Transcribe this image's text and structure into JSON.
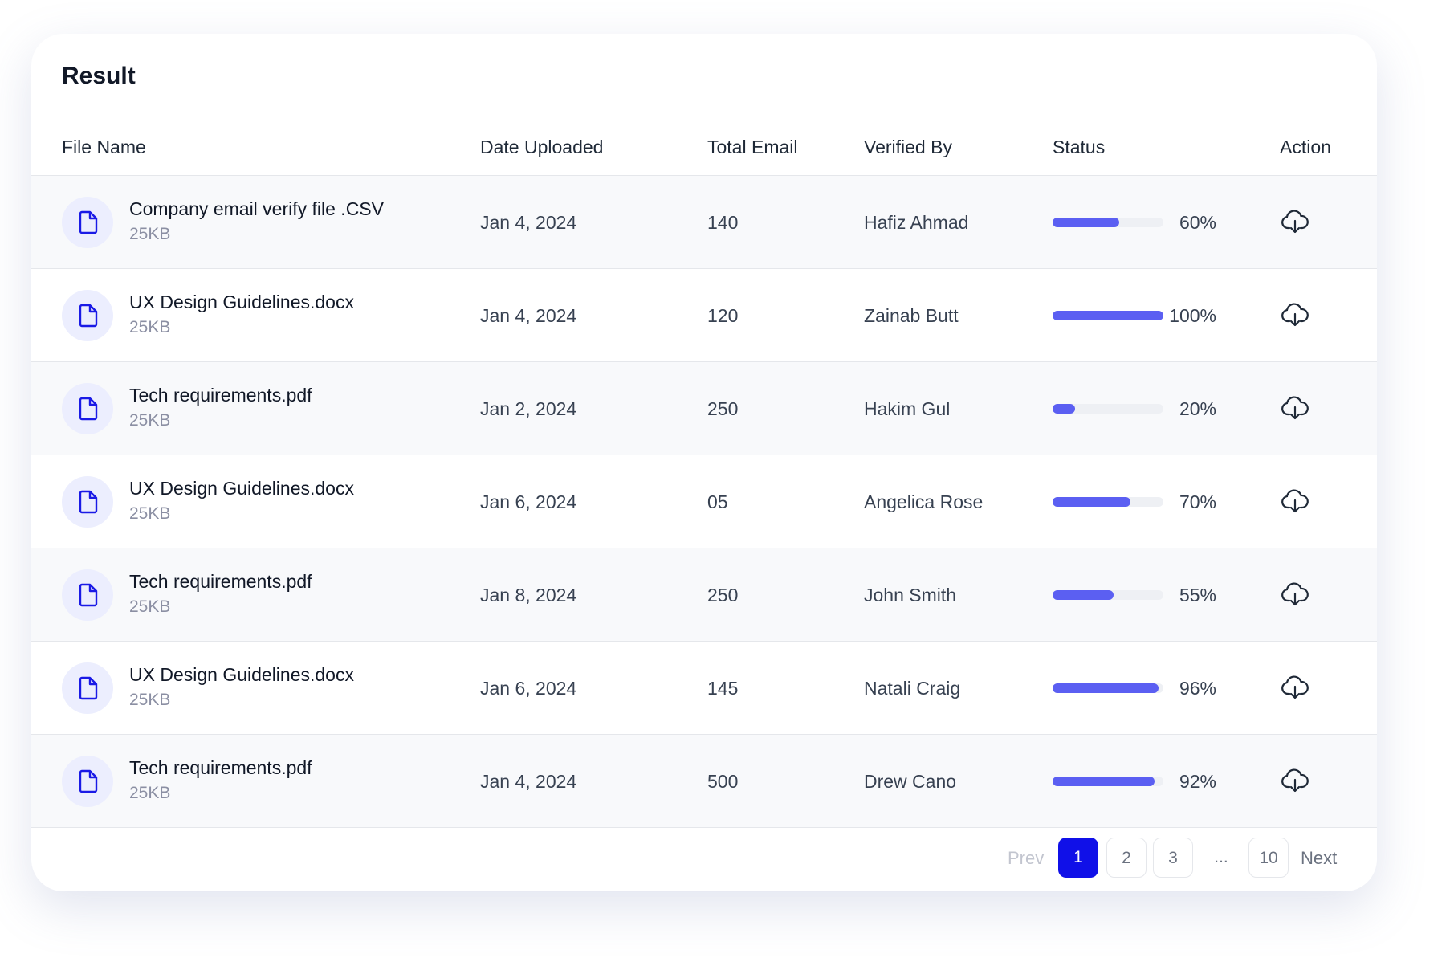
{
  "title": "Result",
  "table": {
    "columns": [
      "File Name",
      "Date Uploaded",
      "Total Email",
      "Verified By",
      "Status",
      "Action"
    ],
    "rows": [
      {
        "file_name": "Company email verify file .CSV",
        "size": "25KB",
        "date": "Jan 4, 2024",
        "total_email": "140",
        "verified_by": "Hafiz Ahmad",
        "status": {
          "value": 60,
          "label": "60%"
        }
      },
      {
        "file_name": "UX Design Guidelines.docx",
        "size": "25KB",
        "date": "Jan 4, 2024",
        "total_email": "120",
        "verified_by": "Zainab Butt",
        "status": {
          "value": 100,
          "label": "100%"
        }
      },
      {
        "file_name": "Tech requirements.pdf",
        "size": "25KB",
        "date": "Jan 2, 2024",
        "total_email": "250",
        "verified_by": "Hakim Gul",
        "status": {
          "value": 20,
          "label": "20%"
        }
      },
      {
        "file_name": "UX Design Guidelines.docx",
        "size": "25KB",
        "date": "Jan 6, 2024",
        "total_email": "05",
        "verified_by": "Angelica Rose",
        "status": {
          "value": 70,
          "label": "70%"
        }
      },
      {
        "file_name": "Tech requirements.pdf",
        "size": "25KB",
        "date": "Jan 8, 2024",
        "total_email": "250",
        "verified_by": "John Smith",
        "status": {
          "value": 55,
          "label": "55%"
        }
      },
      {
        "file_name": "UX Design Guidelines.docx",
        "size": "25KB",
        "date": "Jan 6, 2024",
        "total_email": "145",
        "verified_by": "Natali Craig",
        "status": {
          "value": 96,
          "label": "96%"
        }
      },
      {
        "file_name": "Tech requirements.pdf",
        "size": "25KB",
        "date": "Jan 4, 2024",
        "total_email": "500",
        "verified_by": "Drew Cano",
        "status": {
          "value": 92,
          "label": "92%"
        }
      }
    ]
  },
  "pagination": {
    "prev": "Prev",
    "pages": [
      "1",
      "2",
      "3",
      "...",
      "10"
    ],
    "next": "Next",
    "active": 0
  }
}
